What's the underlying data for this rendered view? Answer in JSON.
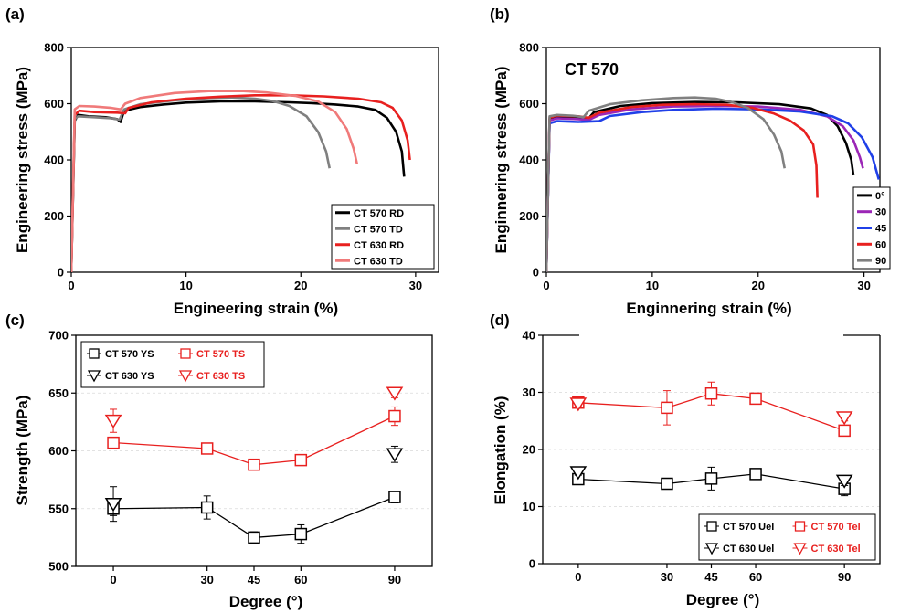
{
  "colors": {
    "black": "#000000",
    "gray": "#808080",
    "red": "#e8201f",
    "pink": "#f07a7a",
    "purple": "#9b26b6",
    "blue": "#2040e8",
    "grid": "#d9d9d9"
  },
  "chart_data": [
    {
      "panel": "(a)",
      "type": "line",
      "xlabel": "Engineering strain (%)",
      "ylabel": "Engineering stress (MPa)",
      "xlim": [
        0,
        32
      ],
      "ylim": [
        0,
        800
      ],
      "xticks": [
        0,
        10,
        20,
        30
      ],
      "yticks": [
        0,
        200,
        400,
        600,
        800
      ],
      "legend_position": "bottom-right",
      "series": [
        {
          "name": "CT 570 RD",
          "color": "#000000",
          "points": [
            [
              0,
              0
            ],
            [
              0.3,
              540
            ],
            [
              0.6,
              560
            ],
            [
              1.5,
              555
            ],
            [
              3,
              552
            ],
            [
              4,
              545
            ],
            [
              4.3,
              535
            ],
            [
              4.6,
              575
            ],
            [
              6,
              588
            ],
            [
              8,
              597
            ],
            [
              10,
              604
            ],
            [
              13,
              608
            ],
            [
              16,
              608
            ],
            [
              19,
              605
            ],
            [
              21,
              602
            ],
            [
              23,
              597
            ],
            [
              25,
              590
            ],
            [
              26.5,
              578
            ],
            [
              27.5,
              550
            ],
            [
              28.3,
              500
            ],
            [
              28.8,
              430
            ],
            [
              29,
              340
            ]
          ]
        },
        {
          "name": "CT 570 TD",
          "color": "#808080",
          "points": [
            [
              0,
              0
            ],
            [
              0.3,
              545
            ],
            [
              0.6,
              555
            ],
            [
              2,
              552
            ],
            [
              3.5,
              548
            ],
            [
              4.2,
              543
            ],
            [
              4.6,
              580
            ],
            [
              6,
              598
            ],
            [
              9,
              612
            ],
            [
              12,
              620
            ],
            [
              14,
              622
            ],
            [
              16,
              618
            ],
            [
              17.5,
              610
            ],
            [
              19,
              592
            ],
            [
              20.5,
              555
            ],
            [
              21.5,
              500
            ],
            [
              22.2,
              430
            ],
            [
              22.5,
              370
            ]
          ]
        },
        {
          "name": "CT 630 RD",
          "color": "#e8201f",
          "points": [
            [
              0,
              0
            ],
            [
              0.3,
              560
            ],
            [
              0.7,
              575
            ],
            [
              2,
              570
            ],
            [
              4,
              568
            ],
            [
              4.7,
              566
            ],
            [
              5,
              585
            ],
            [
              7,
              605
            ],
            [
              10,
              618
            ],
            [
              13,
              625
            ],
            [
              16,
              630
            ],
            [
              19,
              630
            ],
            [
              22,
              626
            ],
            [
              25,
              618
            ],
            [
              27,
              605
            ],
            [
              28,
              585
            ],
            [
              28.8,
              540
            ],
            [
              29.3,
              470
            ],
            [
              29.5,
              400
            ]
          ]
        },
        {
          "name": "CT 630 TD",
          "color": "#f07a7a",
          "points": [
            [
              0,
              0
            ],
            [
              0.3,
              580
            ],
            [
              0.7,
              592
            ],
            [
              2,
              590
            ],
            [
              3.5,
              585
            ],
            [
              4.3,
              580
            ],
            [
              4.7,
              600
            ],
            [
              6,
              620
            ],
            [
              9,
              638
            ],
            [
              12,
              645
            ],
            [
              15,
              645
            ],
            [
              17,
              640
            ],
            [
              19.5,
              628
            ],
            [
              21.5,
              608
            ],
            [
              23,
              570
            ],
            [
              24,
              510
            ],
            [
              24.6,
              440
            ],
            [
              24.9,
              385
            ]
          ]
        }
      ]
    },
    {
      "panel": "(b)",
      "type": "line",
      "annotation": "CT 570",
      "xlabel": "Enginnering strain (%)",
      "ylabel": "Enginnering stress (MPa)",
      "xlim": [
        0,
        31.5
      ],
      "ylim": [
        0,
        800
      ],
      "xticks": [
        0,
        10,
        20,
        30
      ],
      "yticks": [
        0,
        200,
        400,
        600,
        800
      ],
      "legend_position": "bottom-right",
      "series": [
        {
          "name": "0°",
          "color": "#000000",
          "points": [
            [
              0,
              0
            ],
            [
              0.3,
              545
            ],
            [
              1,
              552
            ],
            [
              3,
              550
            ],
            [
              4,
              548
            ],
            [
              4.5,
              570
            ],
            [
              7,
              592
            ],
            [
              10,
              602
            ],
            [
              14,
              606
            ],
            [
              18,
              605
            ],
            [
              22,
              598
            ],
            [
              25,
              583
            ],
            [
              26.5,
              560
            ],
            [
              27.5,
              520
            ],
            [
              28.3,
              460
            ],
            [
              28.8,
              400
            ],
            [
              29,
              345
            ]
          ]
        },
        {
          "name": "30",
          "color": "#9b26b6",
          "points": [
            [
              0,
              0
            ],
            [
              0.3,
              540
            ],
            [
              1,
              548
            ],
            [
              3,
              545
            ],
            [
              4,
              542
            ],
            [
              5,
              560
            ],
            [
              8,
              580
            ],
            [
              12,
              590
            ],
            [
              16,
              592
            ],
            [
              20,
              590
            ],
            [
              24,
              578
            ],
            [
              26.5,
              555
            ],
            [
              28,
              520
            ],
            [
              29,
              470
            ],
            [
              29.6,
              410
            ],
            [
              29.9,
              370
            ]
          ]
        },
        {
          "name": "45",
          "color": "#2040e8",
          "points": [
            [
              0,
              0
            ],
            [
              0.3,
              530
            ],
            [
              1,
              538
            ],
            [
              3,
              535
            ],
            [
              5,
              538
            ],
            [
              6,
              556
            ],
            [
              9,
              570
            ],
            [
              12,
              578
            ],
            [
              16,
              582
            ],
            [
              20,
              580
            ],
            [
              24,
              572
            ],
            [
              27,
              555
            ],
            [
              28.5,
              530
            ],
            [
              29.8,
              480
            ],
            [
              30.8,
              410
            ],
            [
              31.4,
              330
            ]
          ]
        },
        {
          "name": "60",
          "color": "#e8201f",
          "points": [
            [
              0,
              0
            ],
            [
              0.3,
              550
            ],
            [
              1,
              558
            ],
            [
              3,
              555
            ],
            [
              4,
              550
            ],
            [
              5,
              568
            ],
            [
              8,
              588
            ],
            [
              11,
              596
            ],
            [
              14,
              598
            ],
            [
              17,
              596
            ],
            [
              19.5,
              585
            ],
            [
              21.5,
              565
            ],
            [
              23,
              540
            ],
            [
              24.3,
              505
            ],
            [
              25.2,
              455
            ],
            [
              25.5,
              380
            ],
            [
              25.6,
              265
            ]
          ]
        },
        {
          "name": "90",
          "color": "#808080",
          "points": [
            [
              0,
              0
            ],
            [
              0.3,
              555
            ],
            [
              1,
              560
            ],
            [
              2.5,
              557
            ],
            [
              3.5,
              552
            ],
            [
              4,
              575
            ],
            [
              6,
              598
            ],
            [
              9,
              612
            ],
            [
              12,
              620
            ],
            [
              14,
              622
            ],
            [
              16,
              618
            ],
            [
              17.5,
              606
            ],
            [
              19,
              585
            ],
            [
              20.5,
              545
            ],
            [
              21.5,
              490
            ],
            [
              22.2,
              430
            ],
            [
              22.5,
              370
            ]
          ]
        }
      ]
    },
    {
      "panel": "(c)",
      "type": "scatter",
      "xlabel": "Degree (°)",
      "ylabel": "Strength (MPa)",
      "xlim": [
        -12,
        102
      ],
      "ylim": [
        500,
        700
      ],
      "xticks": [
        0,
        30,
        45,
        60,
        90
      ],
      "yticks": [
        500,
        550,
        600,
        650,
        700
      ],
      "grid": true,
      "legend_position": "top-left",
      "series": [
        {
          "name": "CT 570 YS",
          "color": "#000000",
          "marker": "square",
          "line": true,
          "x": [
            0,
            30,
            45,
            60,
            90
          ],
          "y": [
            550,
            551,
            525,
            528,
            560
          ],
          "err": [
            6,
            10,
            5,
            8,
            5
          ]
        },
        {
          "name": "CT 630 YS",
          "color": "#000000",
          "marker": "triangle-down",
          "line": false,
          "x": [
            0,
            90
          ],
          "y": [
            554,
            597
          ],
          "err": [
            15,
            7
          ]
        },
        {
          "name": "CT 570 TS",
          "color": "#e8201f",
          "marker": "square",
          "line": true,
          "x": [
            0,
            30,
            45,
            60,
            90
          ],
          "y": [
            607,
            602,
            588,
            592,
            630
          ],
          "err": [
            4,
            4,
            4,
            4,
            8
          ]
        },
        {
          "name": "CT 630 TS",
          "color": "#e8201f",
          "marker": "triangle-down",
          "line": false,
          "x": [
            0,
            90
          ],
          "y": [
            626,
            650
          ],
          "err": [
            10,
            4
          ]
        }
      ]
    },
    {
      "panel": "(d)",
      "type": "scatter",
      "xlabel": "Degree (°)",
      "ylabel": "Elongation (%)",
      "xlim": [
        -12,
        102
      ],
      "ylim": [
        0,
        40
      ],
      "xticks": [
        0,
        30,
        45,
        60,
        90
      ],
      "yticks": [
        0,
        10,
        20,
        30,
        40
      ],
      "grid": true,
      "legend_position": "bottom-right",
      "series": [
        {
          "name": "CT 570 Uel",
          "color": "#000000",
          "marker": "square",
          "line": true,
          "x": [
            0,
            30,
            45,
            60,
            90
          ],
          "y": [
            14.8,
            14.0,
            14.9,
            15.7,
            13.1
          ],
          "err": [
            0.6,
            0.5,
            2.0,
            0.8,
            1.2
          ]
        },
        {
          "name": "CT 630 Uel",
          "color": "#000000",
          "marker": "triangle-down",
          "line": false,
          "x": [
            0,
            90
          ],
          "y": [
            16.0,
            14.5
          ],
          "err": [
            0.5,
            0.8
          ]
        },
        {
          "name": "CT 570 Tel",
          "color": "#e8201f",
          "marker": "square",
          "line": true,
          "x": [
            0,
            30,
            45,
            60,
            90
          ],
          "y": [
            28.2,
            27.3,
            29.8,
            28.9,
            23.3
          ],
          "err": [
            0.8,
            3.0,
            2.0,
            0.6,
            0.8
          ]
        },
        {
          "name": "CT 630 Tel",
          "color": "#e8201f",
          "marker": "triangle-down",
          "line": false,
          "x": [
            0,
            90
          ],
          "y": [
            28.0,
            25.6
          ],
          "err": [
            0.5,
            0.6
          ]
        }
      ]
    }
  ]
}
